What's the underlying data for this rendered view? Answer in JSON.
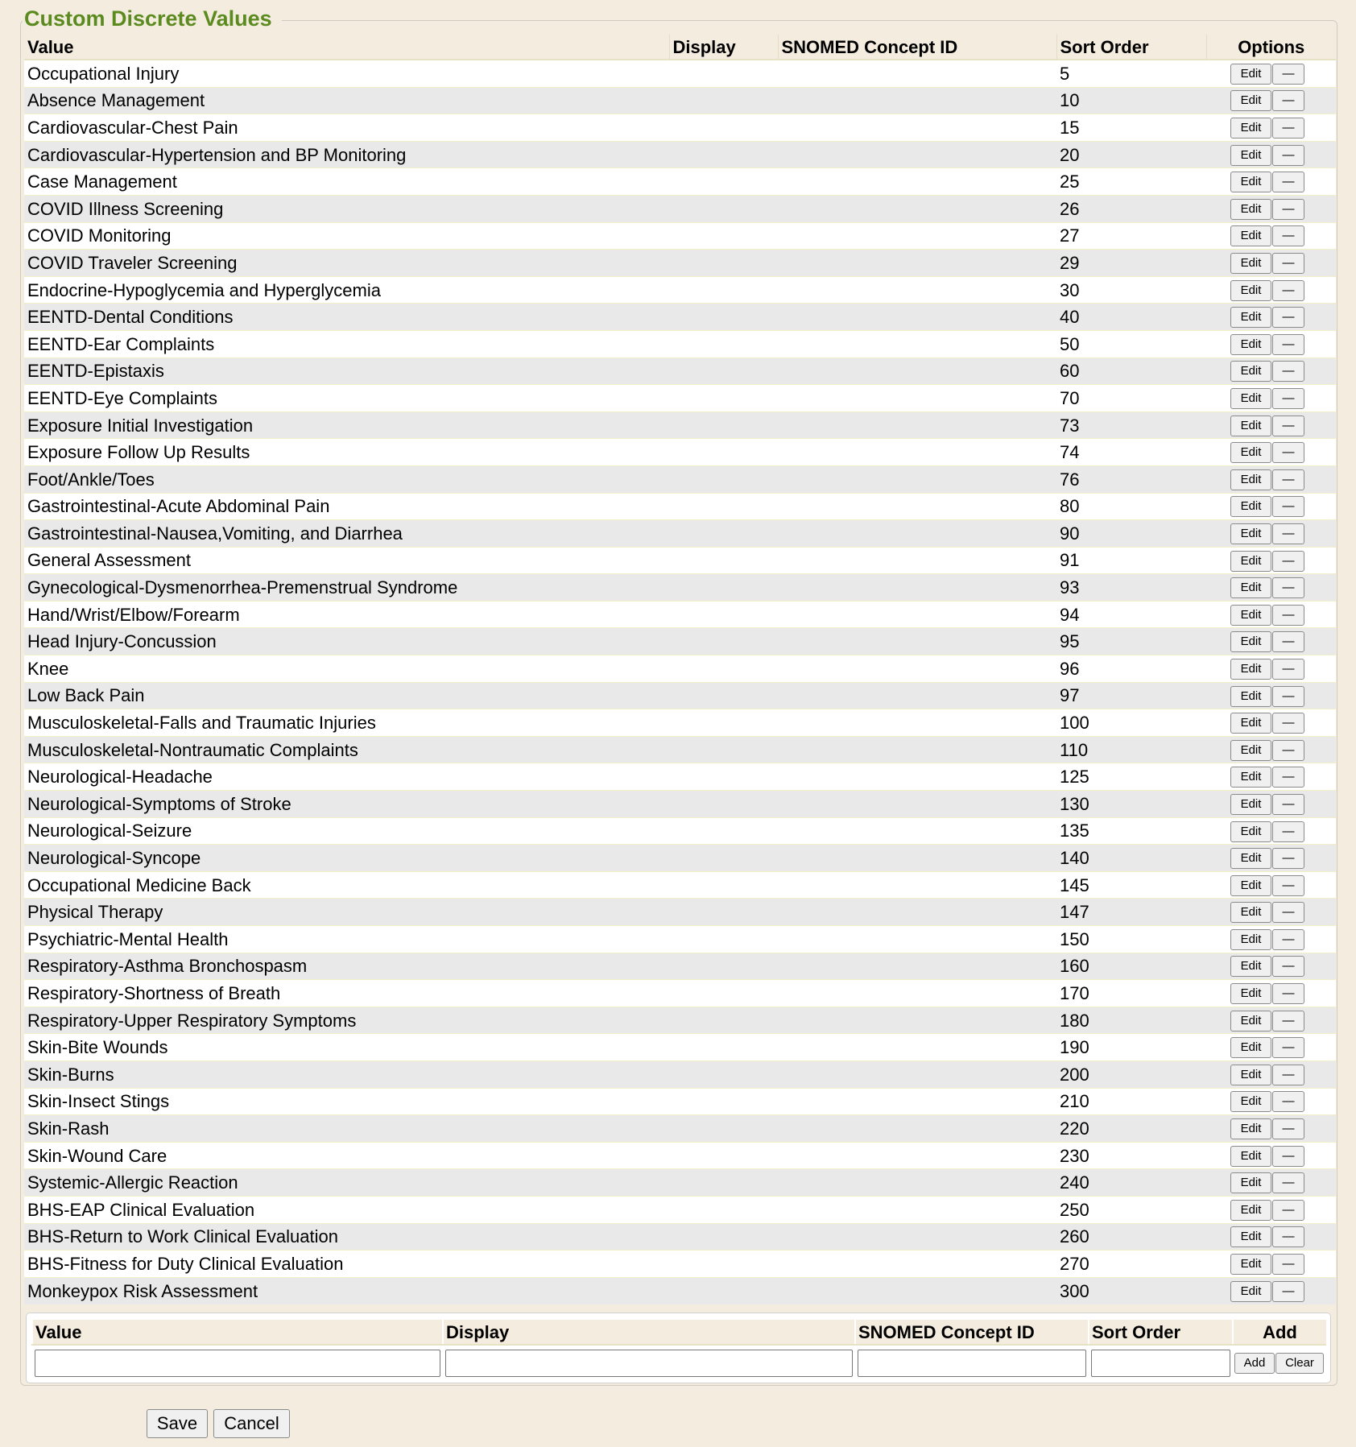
{
  "section": {
    "title": "Custom Discrete Values"
  },
  "columns": {
    "value": "Value",
    "display": "Display",
    "snomed": "SNOMED Concept ID",
    "sort_order": "Sort Order",
    "options": "Options"
  },
  "row_buttons": {
    "edit": "Edit",
    "remove": "—"
  },
  "rows": [
    {
      "value": "Occupational Injury",
      "display": "",
      "snomed": "",
      "sort": "5"
    },
    {
      "value": "Absence Management",
      "display": "",
      "snomed": "",
      "sort": "10"
    },
    {
      "value": "Cardiovascular-Chest Pain",
      "display": "",
      "snomed": "",
      "sort": "15"
    },
    {
      "value": "Cardiovascular-Hypertension and BP Monitoring",
      "display": "",
      "snomed": "",
      "sort": "20"
    },
    {
      "value": "Case Management",
      "display": "",
      "snomed": "",
      "sort": "25"
    },
    {
      "value": "COVID Illness Screening",
      "display": "",
      "snomed": "",
      "sort": "26"
    },
    {
      "value": "COVID Monitoring",
      "display": "",
      "snomed": "",
      "sort": "27"
    },
    {
      "value": "COVID Traveler Screening",
      "display": "",
      "snomed": "",
      "sort": "29"
    },
    {
      "value": "Endocrine-Hypoglycemia and Hyperglycemia",
      "display": "",
      "snomed": "",
      "sort": "30"
    },
    {
      "value": "EENTD-Dental Conditions",
      "display": "",
      "snomed": "",
      "sort": "40"
    },
    {
      "value": "EENTD-Ear Complaints",
      "display": "",
      "snomed": "",
      "sort": "50"
    },
    {
      "value": "EENTD-Epistaxis",
      "display": "",
      "snomed": "",
      "sort": "60"
    },
    {
      "value": "EENTD-Eye Complaints",
      "display": "",
      "snomed": "",
      "sort": "70"
    },
    {
      "value": "Exposure Initial Investigation",
      "display": "",
      "snomed": "",
      "sort": "73"
    },
    {
      "value": "Exposure Follow Up Results",
      "display": "",
      "snomed": "",
      "sort": "74"
    },
    {
      "value": "Foot/Ankle/Toes",
      "display": "",
      "snomed": "",
      "sort": "76"
    },
    {
      "value": "Gastrointestinal-Acute Abdominal Pain",
      "display": "",
      "snomed": "",
      "sort": "80"
    },
    {
      "value": "Gastrointestinal-Nausea,Vomiting, and Diarrhea",
      "display": "",
      "snomed": "",
      "sort": "90"
    },
    {
      "value": "General Assessment",
      "display": "",
      "snomed": "",
      "sort": "91"
    },
    {
      "value": "Gynecological-Dysmenorrhea-Premenstrual Syndrome",
      "display": "",
      "snomed": "",
      "sort": "93"
    },
    {
      "value": "Hand/Wrist/Elbow/Forearm",
      "display": "",
      "snomed": "",
      "sort": "94"
    },
    {
      "value": "Head Injury-Concussion",
      "display": "",
      "snomed": "",
      "sort": "95"
    },
    {
      "value": "Knee",
      "display": "",
      "snomed": "",
      "sort": "96"
    },
    {
      "value": "Low Back Pain",
      "display": "",
      "snomed": "",
      "sort": "97"
    },
    {
      "value": "Musculoskeletal-Falls and Traumatic Injuries",
      "display": "",
      "snomed": "",
      "sort": "100"
    },
    {
      "value": "Musculoskeletal-Nontraumatic Complaints",
      "display": "",
      "snomed": "",
      "sort": "110"
    },
    {
      "value": "Neurological-Headache",
      "display": "",
      "snomed": "",
      "sort": "125"
    },
    {
      "value": "Neurological-Symptoms of Stroke",
      "display": "",
      "snomed": "",
      "sort": "130"
    },
    {
      "value": "Neurological-Seizure",
      "display": "",
      "snomed": "",
      "sort": "135"
    },
    {
      "value": "Neurological-Syncope",
      "display": "",
      "snomed": "",
      "sort": "140"
    },
    {
      "value": "Occupational Medicine Back",
      "display": "",
      "snomed": "",
      "sort": "145"
    },
    {
      "value": "Physical Therapy",
      "display": "",
      "snomed": "",
      "sort": "147"
    },
    {
      "value": "Psychiatric-Mental Health",
      "display": "",
      "snomed": "",
      "sort": "150"
    },
    {
      "value": "Respiratory-Asthma Bronchospasm",
      "display": "",
      "snomed": "",
      "sort": "160"
    },
    {
      "value": "Respiratory-Shortness of Breath",
      "display": "",
      "snomed": "",
      "sort": "170"
    },
    {
      "value": "Respiratory-Upper Respiratory Symptoms",
      "display": "",
      "snomed": "",
      "sort": "180"
    },
    {
      "value": "Skin-Bite Wounds",
      "display": "",
      "snomed": "",
      "sort": "190"
    },
    {
      "value": "Skin-Burns",
      "display": "",
      "snomed": "",
      "sort": "200"
    },
    {
      "value": "Skin-Insect Stings",
      "display": "",
      "snomed": "",
      "sort": "210"
    },
    {
      "value": "Skin-Rash",
      "display": "",
      "snomed": "",
      "sort": "220"
    },
    {
      "value": "Skin-Wound Care",
      "display": "",
      "snomed": "",
      "sort": "230"
    },
    {
      "value": "Systemic-Allergic Reaction",
      "display": "",
      "snomed": "",
      "sort": "240"
    },
    {
      "value": "BHS-EAP Clinical Evaluation",
      "display": "",
      "snomed": "",
      "sort": "250"
    },
    {
      "value": "BHS-Return to Work Clinical Evaluation",
      "display": "",
      "snomed": "",
      "sort": "260"
    },
    {
      "value": "BHS-Fitness for Duty Clinical Evaluation",
      "display": "",
      "snomed": "",
      "sort": "270"
    },
    {
      "value": "Monkeypox Risk Assessment",
      "display": "",
      "snomed": "",
      "sort": "300"
    }
  ],
  "add_form": {
    "columns": {
      "value": "Value",
      "display": "Display",
      "snomed": "SNOMED Concept ID",
      "sort_order": "Sort Order",
      "add": "Add"
    },
    "inputs": {
      "value": "",
      "display": "",
      "snomed": "",
      "sort_order": ""
    },
    "add_label": "Add",
    "clear_label": "Clear"
  },
  "footer": {
    "save_label": "Save",
    "cancel_label": "Cancel"
  },
  "colors": {
    "title": "#5b8a1f",
    "background": "#f4eddf",
    "row_alt": "#e9e9e9"
  }
}
